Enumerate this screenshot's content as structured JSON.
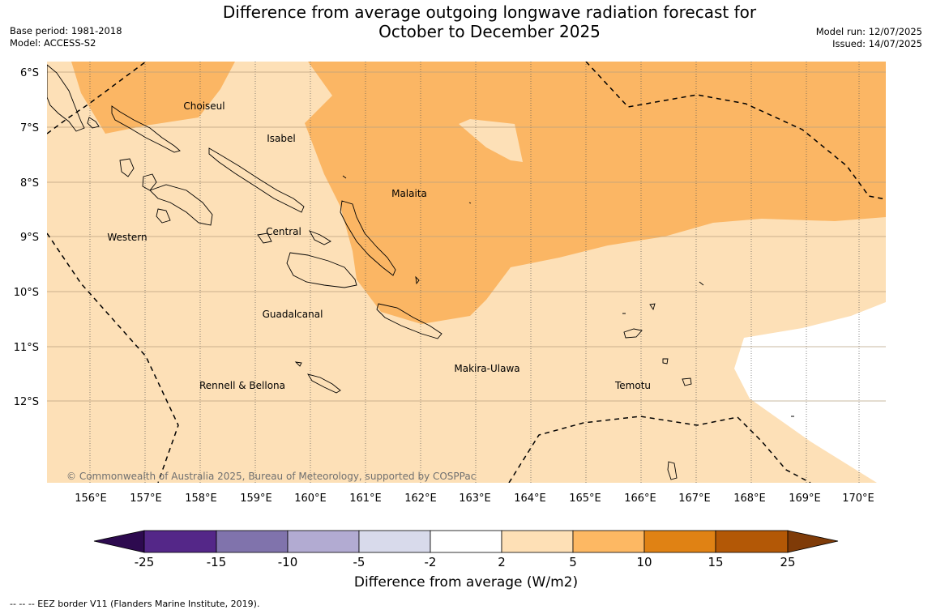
{
  "title_line1": "Difference from average outgoing longwave radiation forecast for",
  "title_line2": "October to December 2025",
  "base_period": "Base period: 1981-2018",
  "model": "Model: ACCESS-S2",
  "model_run": "Model run: 12/07/2025",
  "issued": "Issued: 14/07/2025",
  "copyright": "© Commonwealth of Australia 2025, Bureau of Meteorology, supported by COSPPac",
  "lat_labels": [
    "6°S",
    "7°S",
    "8°S",
    "9°S",
    "10°S",
    "11°S",
    "12°S"
  ],
  "lon_labels": [
    "156°E",
    "157°E",
    "158°E",
    "159°E",
    "160°E",
    "161°E",
    "162°E",
    "163°E",
    "164°E",
    "165°E",
    "166°E",
    "167°E",
    "168°E",
    "169°E",
    "170°E"
  ],
  "regions": {
    "choiseul": "Choiseul",
    "isabel": "Isabel",
    "malaita": "Malaita",
    "western": "Western",
    "central": "Central",
    "guadalcanal": "Guadalcanal",
    "makira": "Makira-Ulawa",
    "rennell": "Rennell & Bellona",
    "temotu": "Temotu"
  },
  "colorbar": {
    "title": "Difference from average (W/m2)",
    "ticks": [
      "-25",
      "-15",
      "-10",
      "-5",
      "-2",
      "2",
      "5",
      "10",
      "15",
      "25"
    ],
    "colors": [
      "#2d0a4f",
      "#542788",
      "#8073ac",
      "#b2abd2",
      "#d8daeb",
      "#ffffff",
      "#fee0b6",
      "#fdb863",
      "#e08214",
      "#b35806",
      "#7f3b08"
    ]
  },
  "legend_note": "--  --  -- EEZ border V11 (Flanders Marine Institute, 2019).",
  "colors": {
    "light_orange": "#fde0b7",
    "mid_orange": "#fbb664",
    "white": "#ffffff"
  }
}
